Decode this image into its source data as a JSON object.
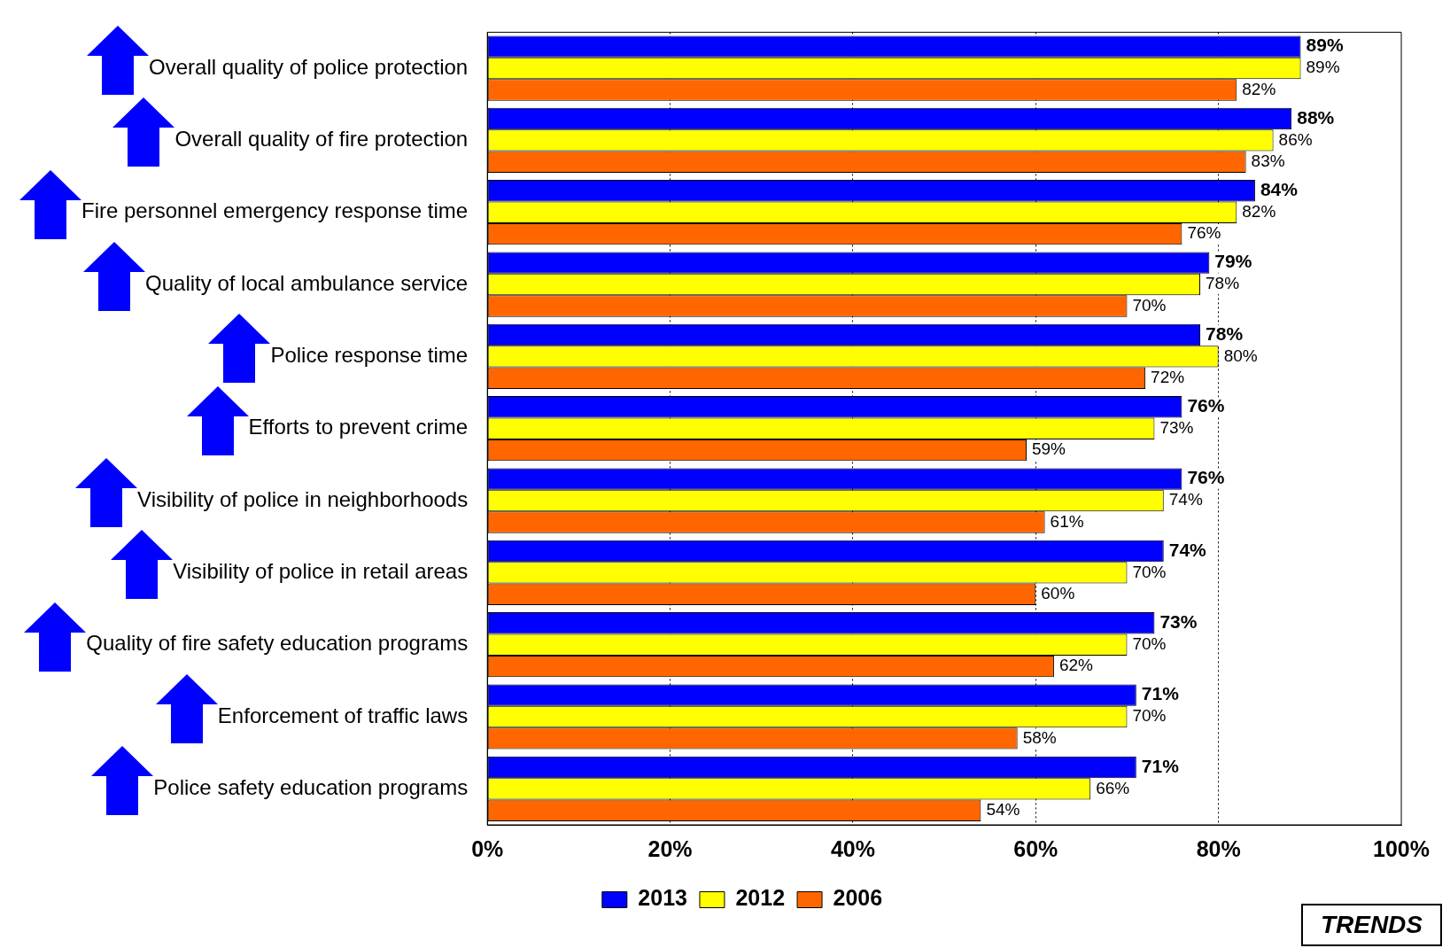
{
  "chart_data": {
    "type": "bar",
    "orientation": "horizontal",
    "categories": [
      "Overall quality of police protection",
      "Overall quality of fire protection",
      "Fire personnel emergency response time",
      "Quality of local ambulance service",
      "Police response time",
      "Efforts to prevent crime",
      "Visibility of police in neighborhoods",
      "Visibility of police in retail areas",
      "Quality of fire safety education programs",
      "Enforcement of traffic laws",
      "Police safety education programs"
    ],
    "series": [
      {
        "name": "2013",
        "color": "#0000ff",
        "values": [
          89,
          88,
          84,
          79,
          78,
          76,
          76,
          74,
          73,
          71,
          71
        ],
        "value_labels": [
          "89%",
          "88%",
          "84%",
          "79%",
          "78%",
          "76%",
          "76%",
          "74%",
          "73%",
          "71%",
          "71%"
        ]
      },
      {
        "name": "2012",
        "color": "#ffff00",
        "values": [
          89,
          86,
          82,
          78,
          80,
          73,
          74,
          70,
          70,
          70,
          66
        ],
        "value_labels": [
          "89%",
          "86%",
          "82%",
          "78%",
          "80%",
          "73%",
          "74%",
          "70%",
          "70%",
          "70%",
          "66%"
        ]
      },
      {
        "name": "2006",
        "color": "#ff6600",
        "values": [
          82,
          83,
          76,
          70,
          72,
          59,
          61,
          60,
          62,
          58,
          54
        ],
        "value_labels": [
          "82%",
          "83%",
          "76%",
          "70%",
          "72%",
          "59%",
          "61%",
          "60%",
          "62%",
          "58%",
          "54%"
        ]
      }
    ],
    "xlim": [
      0,
      100
    ],
    "xticks": [
      {
        "value": 0,
        "label": "0%"
      },
      {
        "value": 20,
        "label": "20%"
      },
      {
        "value": 40,
        "label": "40%"
      },
      {
        "value": 60,
        "label": "60%"
      },
      {
        "value": 80,
        "label": "80%"
      },
      {
        "value": 100,
        "label": "100%"
      }
    ],
    "grid": "x",
    "legend": "bottom",
    "annotations": [
      "TRENDS"
    ]
  }
}
